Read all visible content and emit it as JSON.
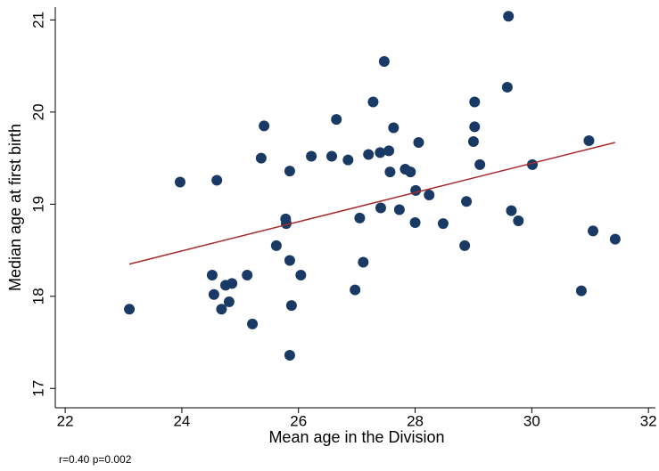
{
  "chart_data": {
    "type": "scatter",
    "x_label": "Mean age in the Division",
    "y_label": "Median age at first birth",
    "note": "r=0.40 p=0.002",
    "xlim": [
      21.83,
      32.12
    ],
    "ylim": [
      16.79,
      21.12
    ],
    "xticks": [
      22,
      24,
      26,
      28,
      30,
      32
    ],
    "yticks": [
      17,
      18,
      19,
      20,
      21
    ],
    "series": [
      {
        "color": "#1a3a66",
        "x": [
          23.1,
          23.97,
          24.6,
          24.52,
          24.55,
          24.75,
          24.86,
          24.68,
          24.81,
          25.12,
          25.21,
          25.36,
          25.41,
          25.62,
          25.78,
          25.79,
          25.85,
          25.85,
          25.88,
          25.85,
          26.04,
          26.22,
          26.57,
          26.65,
          26.85,
          26.97,
          27.05,
          27.11,
          27.2,
          27.28,
          27.4,
          27.41,
          27.47,
          27.55,
          27.57,
          27.63,
          27.73,
          27.83,
          27.92,
          28.0,
          28.01,
          28.06,
          28.24,
          28.48,
          28.85,
          28.88,
          29.0,
          29.02,
          29.02,
          29.11,
          29.58,
          29.6,
          29.65,
          29.77,
          30.01,
          30.85,
          30.98,
          31.05,
          31.43
        ],
        "values": [
          17.86,
          19.24,
          19.26,
          18.23,
          18.02,
          18.12,
          18.14,
          17.86,
          17.94,
          18.23,
          17.7,
          19.5,
          19.85,
          18.55,
          18.84,
          18.79,
          19.36,
          18.39,
          17.9,
          17.36,
          18.23,
          19.52,
          19.52,
          19.92,
          19.48,
          18.07,
          18.85,
          18.37,
          19.54,
          20.11,
          19.56,
          18.96,
          20.55,
          19.58,
          19.35,
          19.83,
          18.94,
          19.38,
          19.35,
          18.8,
          19.15,
          19.67,
          19.1,
          18.79,
          18.55,
          19.03,
          19.68,
          19.84,
          20.11,
          19.43,
          20.27,
          21.04,
          18.93,
          18.82,
          19.43,
          18.06,
          19.69,
          18.71,
          18.62
        ]
      }
    ],
    "fit_line": {
      "color": "#a52a2a",
      "x": [
        23.1,
        31.43
      ],
      "values": [
        18.35,
        19.67
      ]
    }
  }
}
